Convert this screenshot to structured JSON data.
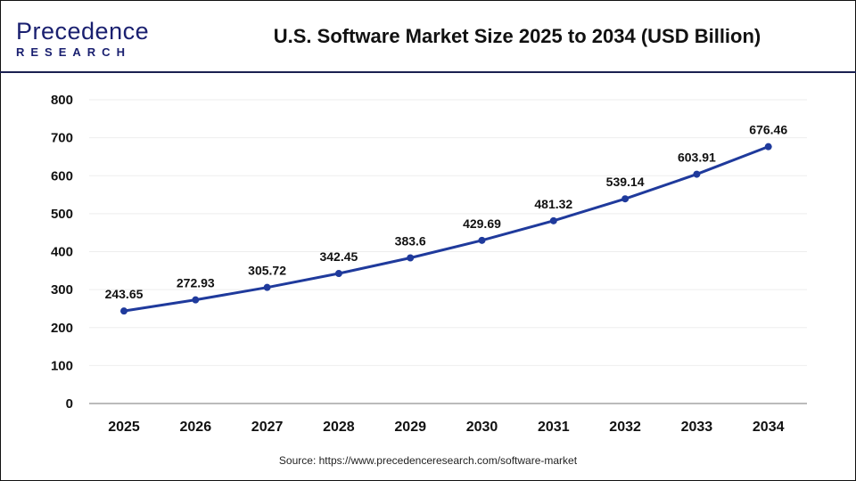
{
  "logo": {
    "line1": "Precedence",
    "line2": "RESEARCH"
  },
  "title": "U.S. Software Market Size 2025 to 2034 (USD Billion)",
  "source": "Source: https://www.precedenceresearch.com/software-market",
  "chart_data": {
    "type": "line",
    "title": "U.S. Software Market Size 2025 to 2034 (USD Billion)",
    "categories": [
      "2025",
      "2026",
      "2027",
      "2028",
      "2029",
      "2030",
      "2031",
      "2032",
      "2033",
      "2034"
    ],
    "values": [
      243.65,
      272.93,
      305.72,
      342.45,
      383.6,
      429.69,
      481.32,
      539.14,
      603.91,
      676.46
    ],
    "labels": [
      "243.65",
      "272.93",
      "305.72",
      "342.45",
      "383.6",
      "429.69",
      "481.32",
      "539.14",
      "603.91",
      "676.46"
    ],
    "ylim": [
      0,
      800
    ],
    "yticks": [
      "0",
      "100",
      "200",
      "300",
      "400",
      "500",
      "600",
      "700",
      "800"
    ],
    "grid": true,
    "color": "#1f3a9c"
  }
}
